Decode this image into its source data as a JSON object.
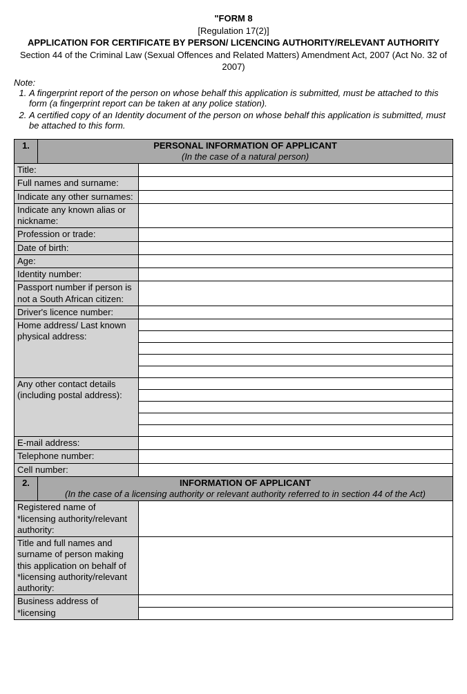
{
  "header": {
    "form_line": "\"FORM 8",
    "regulation": "[Regulation 17(2)]",
    "title": "APPLICATION FOR CERTIFICATE BY PERSON/ LICENCING AUTHORITY/RELEVANT AUTHORITY",
    "section_ref": "Section 44 of the Criminal Law (Sexual Offences and Related Matters) Amendment Act, 2007 (Act No. 32 of 2007)"
  },
  "note": {
    "label": "Note:",
    "items": [
      "A fingerprint report of the person on whose behalf this application is submitted, must be attached to this form (a fingerprint report can be taken at any police station).",
      "A certified copy of an Identity document of the person on whose behalf this application is submitted, must be attached to this form."
    ]
  },
  "sections": [
    {
      "number": "1.",
      "title": "PERSONAL INFORMATION OF APPLICANT",
      "subtitle": "(In the case of a natural person)",
      "rows": [
        {
          "label": "Title:",
          "lines": 1
        },
        {
          "label": "Full names and surname:",
          "lines": 1
        },
        {
          "label": "Indicate any other surnames:",
          "lines": 1
        },
        {
          "label": "Indicate any known alias or nickname:",
          "lines": 1
        },
        {
          "label": "Profession or trade:",
          "lines": 1
        },
        {
          "label": "Date of birth:",
          "lines": 1
        },
        {
          "label": "Age:",
          "lines": 1
        },
        {
          "label": "Identity number:",
          "lines": 1
        },
        {
          "label": "Passport number if person is not a South African citizen:",
          "lines": 1
        },
        {
          "label": "Driver's licence number:",
          "lines": 1
        },
        {
          "label": "Home address/ Last known physical address:",
          "lines": 5
        },
        {
          "label": "Any other contact details (including postal address):",
          "lines": 5
        },
        {
          "label": "E-mail address:",
          "lines": 1
        },
        {
          "label": "Telephone number:",
          "lines": 1
        },
        {
          "label": "Cell number:",
          "lines": 1
        }
      ]
    },
    {
      "number": "2.",
      "title": "INFORMATION OF APPLICANT",
      "subtitle": "(In the case of a licensing authority or relevant authority referred to in section 44 of the Act)",
      "rows": [
        {
          "label": "Registered name of *licensing authority/relevant authority:",
          "lines": 1
        },
        {
          "label": "Title and full names and surname of person making this application on behalf of *licensing authority/relevant authority:",
          "lines": 1
        },
        {
          "label": "Business address of *licensing",
          "lines": 2
        }
      ]
    }
  ]
}
